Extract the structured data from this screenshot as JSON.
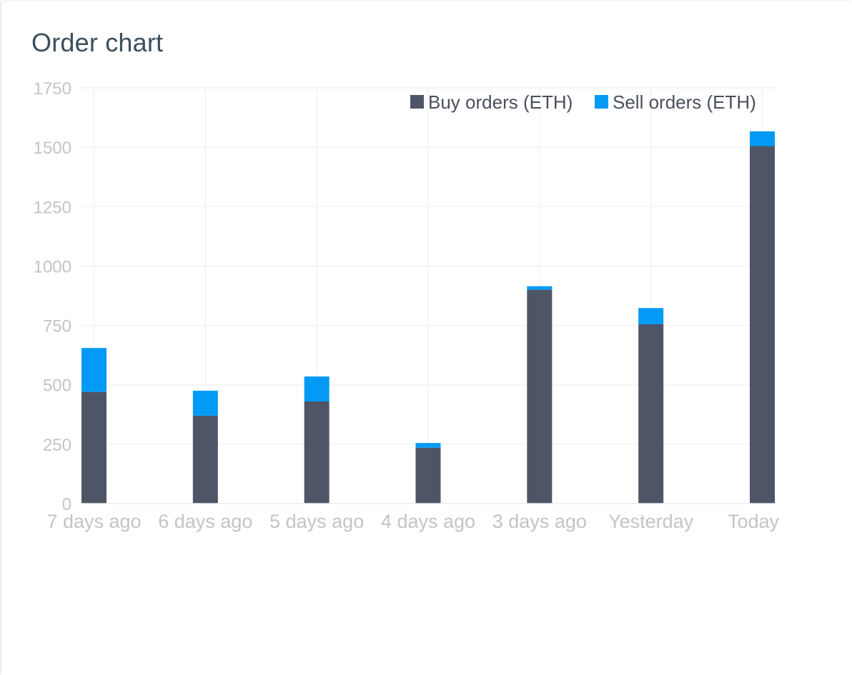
{
  "card": {
    "title": "Order chart"
  },
  "chart_data": {
    "type": "bar",
    "stacked": true,
    "title": "Order chart",
    "categories": [
      "7 days ago",
      "6 days ago",
      "5 days ago",
      "4 days ago",
      "3 days ago",
      "Yesterday",
      "Today"
    ],
    "series": [
      {
        "name": "Buy orders (ETH)",
        "color": "#4e5566",
        "values": [
          470,
          370,
          430,
          235,
          900,
          755,
          1505
        ]
      },
      {
        "name": "Sell orders (ETH)",
        "color": "#039af5",
        "values": [
          185,
          105,
          105,
          20,
          15,
          68,
          62
        ]
      }
    ],
    "ylim": [
      0,
      1750
    ],
    "yticks": [
      0,
      250,
      500,
      750,
      1000,
      1250,
      1500,
      1750
    ],
    "grid": true,
    "legend_position": "top-right",
    "xlabel": "",
    "ylabel": ""
  }
}
